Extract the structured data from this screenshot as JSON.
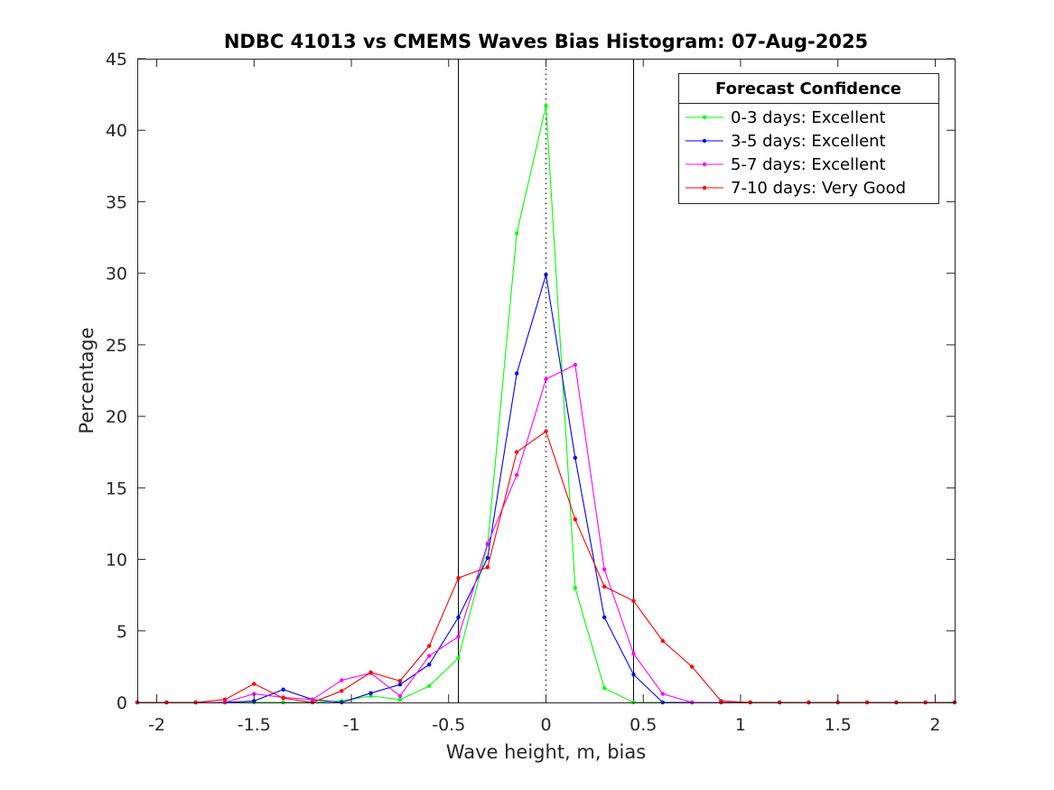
{
  "chart_data": {
    "type": "line",
    "title": "NDBC 41013 vs CMEMS Waves Bias Histogram: 07-Aug-2025",
    "xlabel": "Wave height, m, bias",
    "ylabel": "Percentage",
    "xlim": [
      -2.1,
      2.1
    ],
    "ylim": [
      0,
      45
    ],
    "xticks": [
      -2,
      -1.5,
      -1,
      -0.5,
      0,
      0.5,
      1,
      1.5,
      2
    ],
    "xtick_labels": [
      "-2",
      "-1.5",
      "-1",
      "-0.5",
      "0",
      "0.5",
      "1",
      "1.5",
      "2"
    ],
    "yticks": [
      0,
      5,
      10,
      15,
      20,
      25,
      30,
      35,
      40,
      45
    ],
    "ytick_labels": [
      "0",
      "5",
      "10",
      "15",
      "20",
      "25",
      "30",
      "35",
      "40",
      "45"
    ],
    "grid": false,
    "legend": {
      "title": "Forecast Confidence",
      "placement": "top-right"
    },
    "reference_lines": [
      {
        "x": -0.45,
        "style": "solid",
        "color": "#000000"
      },
      {
        "x": 0,
        "style": "dotted",
        "color": "#000000"
      },
      {
        "x": 0.45,
        "style": "solid",
        "color": "#000000"
      }
    ],
    "x": [
      -2.1,
      -1.95,
      -1.8,
      -1.65,
      -1.5,
      -1.35,
      -1.2,
      -1.05,
      -0.9,
      -0.75,
      -0.6,
      -0.45,
      -0.3,
      -0.15,
      0,
      0.15,
      0.3,
      0.45,
      0.6,
      0.75,
      0.9,
      1.05,
      1.2,
      1.35,
      1.5,
      1.65,
      1.8,
      1.95,
      2.1
    ],
    "series": [
      {
        "name": "0-3 days: Excellent",
        "color": "#00ff00",
        "values": [
          0,
          0,
          0,
          0,
          0,
          0,
          0,
          0.1,
          0.45,
          0.2,
          1.15,
          3.1,
          11.0,
          32.8,
          41.7,
          8.0,
          1.0,
          0,
          0,
          0,
          0,
          0,
          0,
          0,
          0,
          0,
          0,
          0,
          0
        ]
      },
      {
        "name": "3-5 days: Excellent",
        "color": "#0000ff",
        "values": [
          0,
          0,
          0,
          0,
          0.1,
          0.9,
          0.2,
          0,
          0.65,
          1.25,
          2.65,
          5.95,
          10.1,
          23.0,
          29.9,
          17.1,
          5.95,
          1.95,
          0,
          0,
          0,
          0,
          0,
          0,
          0,
          0,
          0,
          0,
          0
        ]
      },
      {
        "name": "5-7 days: Excellent",
        "color": "#ff00ff",
        "values": [
          0,
          0,
          0,
          0,
          0.6,
          0.35,
          0.2,
          1.55,
          2.05,
          0.45,
          3.25,
          4.6,
          11.1,
          15.9,
          22.6,
          23.6,
          9.3,
          3.4,
          0.6,
          0,
          0,
          0,
          0,
          0,
          0,
          0,
          0,
          0,
          0
        ]
      },
      {
        "name": "7-10 days: Very Good",
        "color": "#ff0000",
        "values": [
          0,
          0,
          0,
          0.2,
          1.3,
          0.3,
          0,
          0.8,
          2.1,
          1.5,
          3.95,
          8.7,
          9.45,
          17.5,
          18.95,
          12.8,
          8.1,
          7.1,
          4.3,
          2.5,
          0.1,
          0,
          0,
          0,
          0,
          0,
          0,
          0,
          0
        ]
      }
    ]
  }
}
